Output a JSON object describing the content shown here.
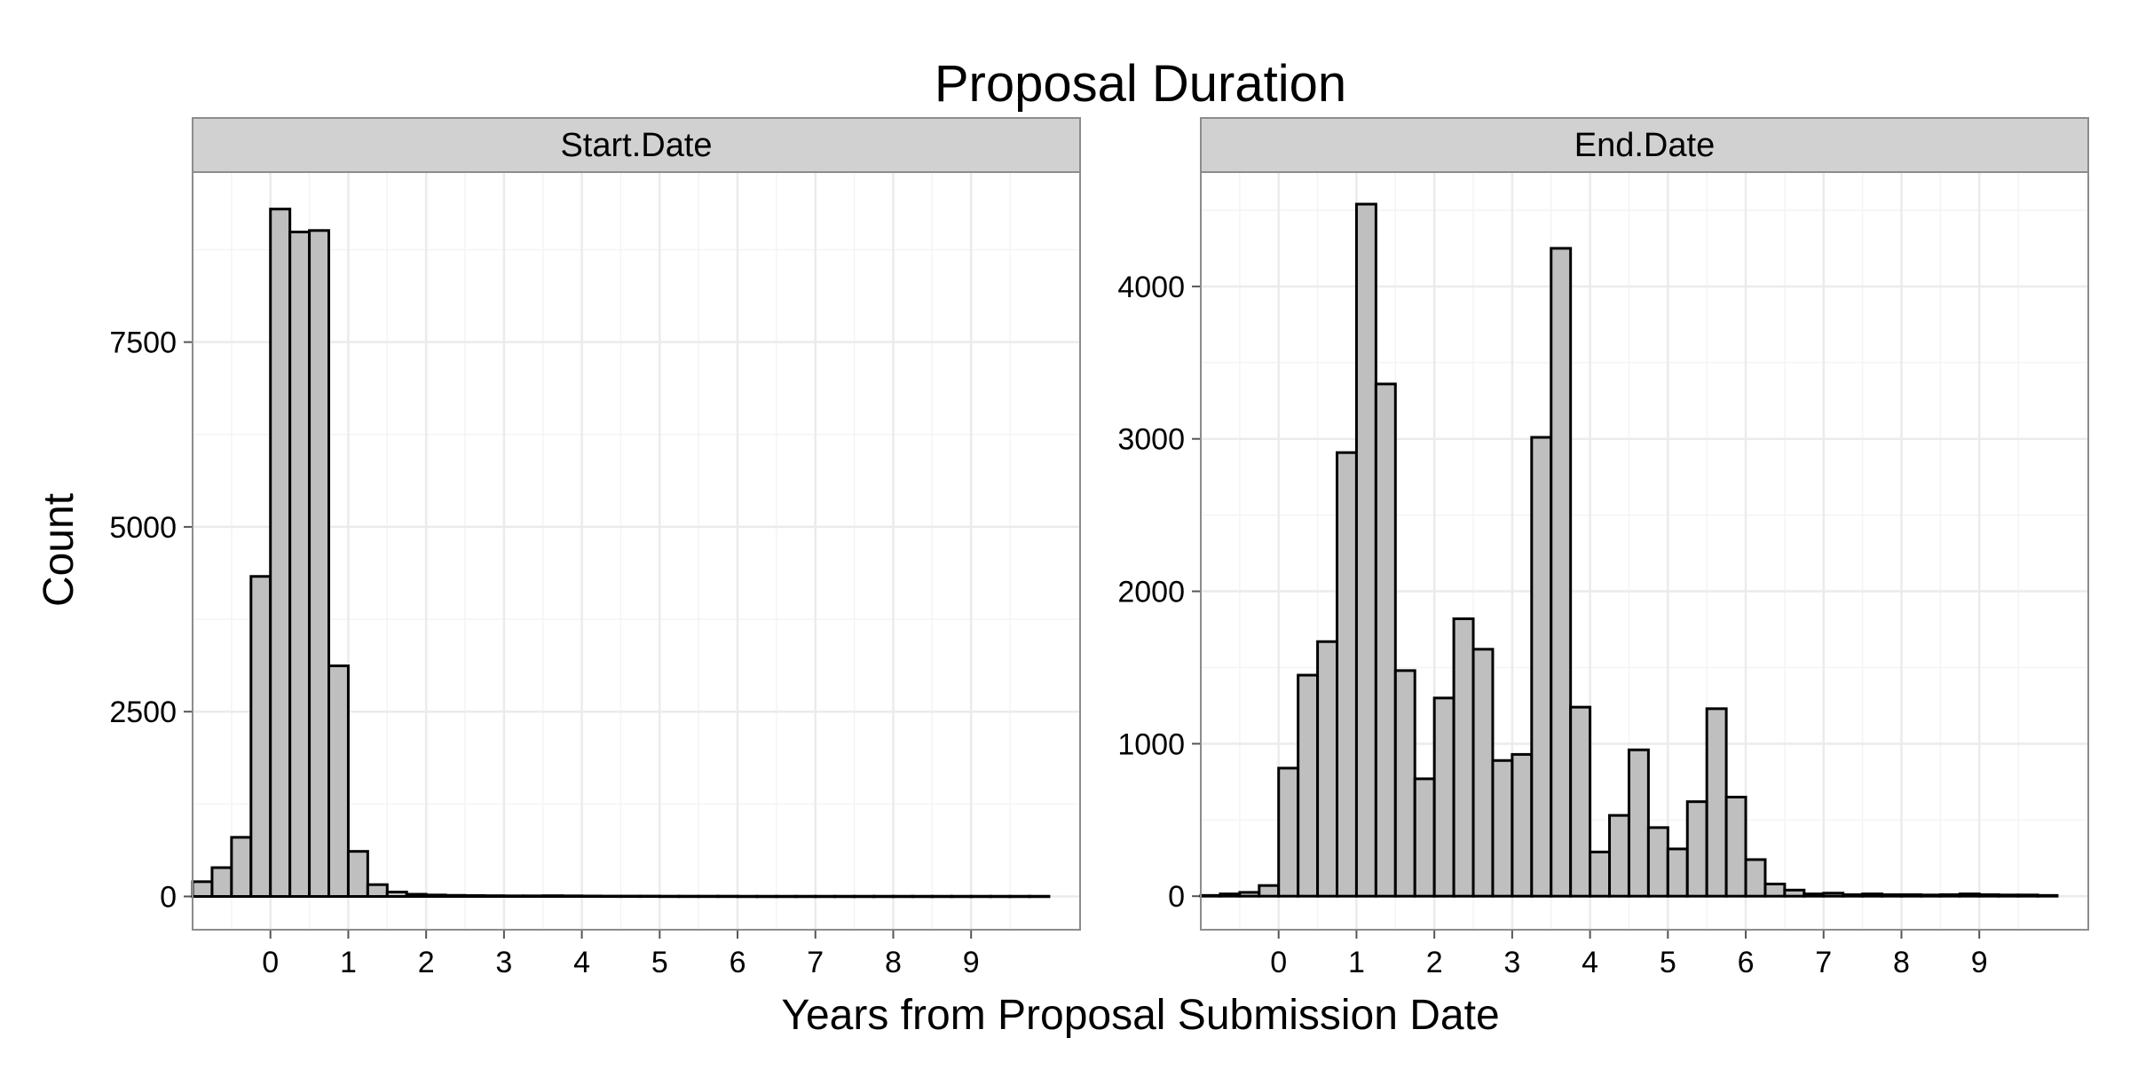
{
  "chart_data": {
    "type": "bar",
    "title": "Proposal Duration",
    "xlabel": "Years from Proposal Submission Date",
    "ylabel": "Count",
    "grid": true,
    "bin_width": 0.25,
    "x_ticks": [
      0,
      1,
      2,
      3,
      4,
      5,
      6,
      7,
      8,
      9
    ],
    "panels": [
      {
        "name": "Start.Date",
        "y_ticks": [
          0,
          2500,
          5000,
          7500
        ],
        "ylim": [
          -450,
          9800
        ],
        "xlim": [
          -1.0,
          10.4
        ],
        "bin_starts": [
          -1.0,
          -0.75,
          -0.5,
          -0.25,
          0.0,
          0.25,
          0.5,
          0.75,
          1.0,
          1.25,
          1.5,
          1.75,
          2.0,
          2.25,
          2.5,
          2.75,
          3.0,
          3.25,
          3.5,
          3.75,
          4.0,
          4.25,
          4.5,
          4.75,
          5.0,
          5.25,
          5.5,
          5.75,
          6.0,
          6.25,
          6.5,
          6.75,
          7.0,
          7.25,
          7.5,
          7.75,
          8.0,
          8.25,
          8.5,
          8.75,
          9.0,
          9.25,
          9.5,
          9.75
        ],
        "values": [
          200,
          390,
          800,
          4330,
          9300,
          8990,
          9010,
          3120,
          610,
          160,
          60,
          30,
          20,
          15,
          12,
          10,
          8,
          8,
          10,
          8,
          6,
          5,
          5,
          5,
          4,
          4,
          4,
          4,
          3,
          3,
          3,
          3,
          3,
          3,
          3,
          3,
          3,
          3,
          3,
          3,
          3,
          3,
          3,
          3
        ]
      },
      {
        "name": "End.Date",
        "y_ticks": [
          0,
          1000,
          2000,
          3000,
          4000
        ],
        "ylim": [
          -220,
          4750
        ],
        "xlim": [
          -1.0,
          10.4
        ],
        "bin_starts": [
          -1.0,
          -0.75,
          -0.5,
          -0.25,
          0.0,
          0.25,
          0.5,
          0.75,
          1.0,
          1.25,
          1.5,
          1.75,
          2.0,
          2.25,
          2.5,
          2.75,
          3.0,
          3.25,
          3.5,
          3.75,
          4.0,
          4.25,
          4.5,
          4.75,
          5.0,
          5.25,
          5.5,
          5.75,
          6.0,
          6.25,
          6.5,
          6.75,
          7.0,
          7.25,
          7.5,
          7.75,
          8.0,
          8.25,
          8.5,
          8.75,
          9.0,
          9.25,
          9.5,
          9.75
        ],
        "values": [
          5,
          15,
          25,
          70,
          840,
          1450,
          1670,
          2910,
          4540,
          3360,
          1480,
          770,
          1300,
          1820,
          1620,
          890,
          930,
          3010,
          4250,
          1240,
          290,
          530,
          960,
          450,
          310,
          620,
          1230,
          650,
          240,
          80,
          40,
          15,
          20,
          10,
          15,
          10,
          10,
          8,
          10,
          15,
          10,
          8,
          8,
          5
        ]
      }
    ],
    "colors": {
      "bar_fill": "#bfbfbf",
      "bar_stroke": "#000000",
      "strip_fill": "#d1d1d1",
      "panel_border": "#8c8c8c",
      "grid": "#ebebeb"
    }
  }
}
